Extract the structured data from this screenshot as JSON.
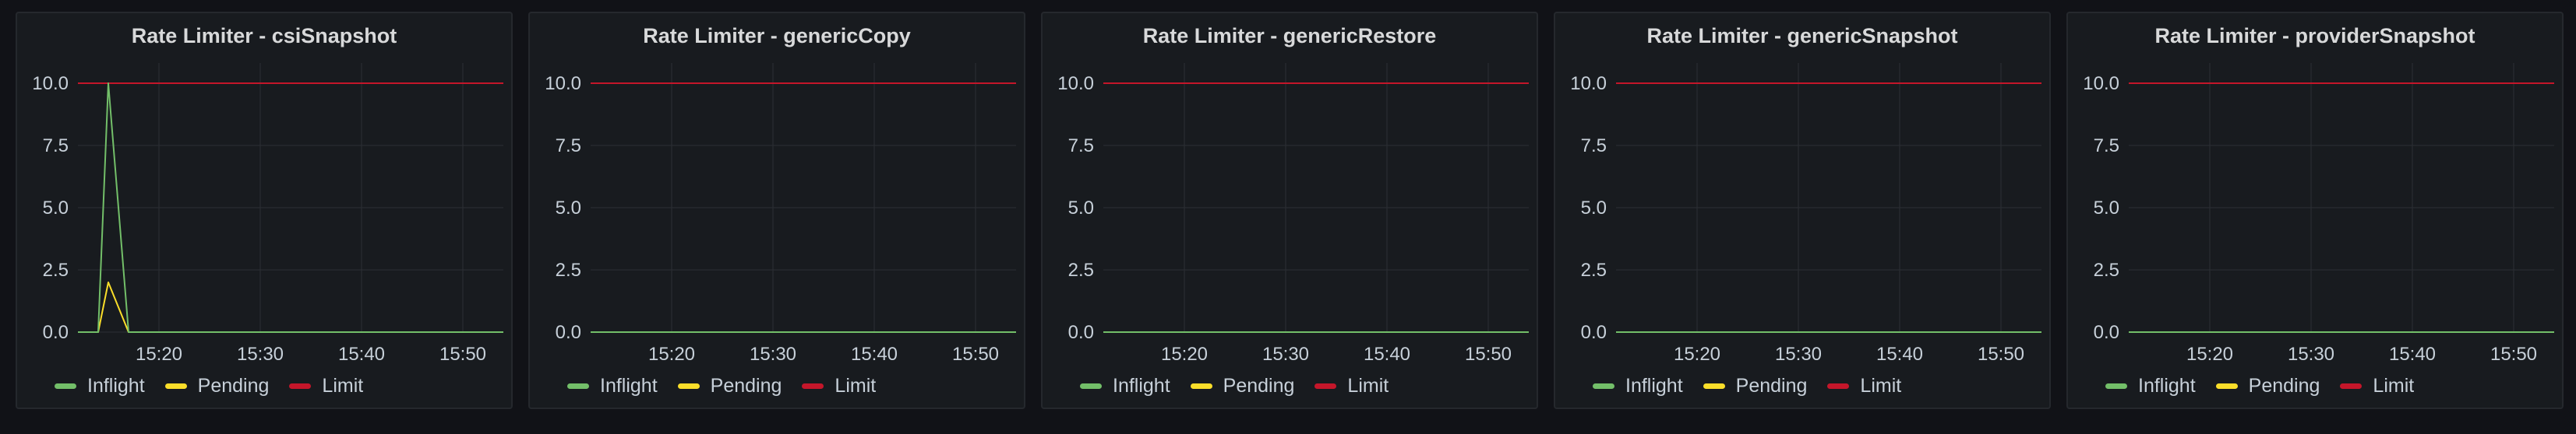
{
  "colors": {
    "inflight": "#73bf69",
    "pending": "#fade2a",
    "limit": "#c4162a"
  },
  "legend": [
    {
      "key": "inflight",
      "label": "Inflight"
    },
    {
      "key": "pending",
      "label": "Pending"
    },
    {
      "key": "limit",
      "label": "Limit"
    }
  ],
  "chart_data": [
    {
      "type": "line",
      "title": "Rate Limiter - csiSnapshot",
      "x_ticks": [
        "15:20",
        "15:30",
        "15:40",
        "15:50"
      ],
      "y_ticks": [
        "0.0",
        "2.5",
        "5.0",
        "7.5",
        "10.0"
      ],
      "ylim": [
        0,
        10
      ],
      "xlim": [
        "15:12",
        "15:54"
      ],
      "grid": true,
      "legend_position": "bottom-left",
      "series": [
        {
          "name": "Inflight",
          "key": "inflight",
          "x": [
            "15:12",
            "15:14",
            "15:15",
            "15:17",
            "15:54"
          ],
          "values": [
            0,
            0,
            10,
            0,
            0
          ]
        },
        {
          "name": "Pending",
          "key": "pending",
          "x": [
            "15:12",
            "15:14",
            "15:15",
            "15:17",
            "15:54"
          ],
          "values": [
            0,
            0,
            2,
            0,
            0
          ]
        },
        {
          "name": "Limit",
          "key": "limit",
          "x": [
            "15:12",
            "15:54"
          ],
          "values": [
            10,
            10
          ]
        }
      ]
    },
    {
      "type": "line",
      "title": "Rate Limiter - genericCopy",
      "x_ticks": [
        "15:20",
        "15:30",
        "15:40",
        "15:50"
      ],
      "y_ticks": [
        "0.0",
        "2.5",
        "5.0",
        "7.5",
        "10.0"
      ],
      "ylim": [
        0,
        10
      ],
      "xlim": [
        "15:12",
        "15:54"
      ],
      "grid": true,
      "legend_position": "bottom-left",
      "series": [
        {
          "name": "Inflight",
          "key": "inflight",
          "x": [
            "15:12",
            "15:54"
          ],
          "values": [
            0,
            0
          ]
        },
        {
          "name": "Pending",
          "key": "pending",
          "x": [
            "15:12",
            "15:54"
          ],
          "values": [
            0,
            0
          ]
        },
        {
          "name": "Limit",
          "key": "limit",
          "x": [
            "15:12",
            "15:54"
          ],
          "values": [
            10,
            10
          ]
        }
      ]
    },
    {
      "type": "line",
      "title": "Rate Limiter - genericRestore",
      "x_ticks": [
        "15:20",
        "15:30",
        "15:40",
        "15:50"
      ],
      "y_ticks": [
        "0.0",
        "2.5",
        "5.0",
        "7.5",
        "10.0"
      ],
      "ylim": [
        0,
        10
      ],
      "xlim": [
        "15:12",
        "15:54"
      ],
      "grid": true,
      "legend_position": "bottom-left",
      "series": [
        {
          "name": "Inflight",
          "key": "inflight",
          "x": [
            "15:12",
            "15:54"
          ],
          "values": [
            0,
            0
          ]
        },
        {
          "name": "Pending",
          "key": "pending",
          "x": [
            "15:12",
            "15:54"
          ],
          "values": [
            0,
            0
          ]
        },
        {
          "name": "Limit",
          "key": "limit",
          "x": [
            "15:12",
            "15:54"
          ],
          "values": [
            10,
            10
          ]
        }
      ]
    },
    {
      "type": "line",
      "title": "Rate Limiter - genericSnapshot",
      "x_ticks": [
        "15:20",
        "15:30",
        "15:40",
        "15:50"
      ],
      "y_ticks": [
        "0.0",
        "2.5",
        "5.0",
        "7.5",
        "10.0"
      ],
      "ylim": [
        0,
        10
      ],
      "xlim": [
        "15:12",
        "15:54"
      ],
      "grid": true,
      "legend_position": "bottom-left",
      "series": [
        {
          "name": "Inflight",
          "key": "inflight",
          "x": [
            "15:12",
            "15:54"
          ],
          "values": [
            0,
            0
          ]
        },
        {
          "name": "Pending",
          "key": "pending",
          "x": [
            "15:12",
            "15:54"
          ],
          "values": [
            0,
            0
          ]
        },
        {
          "name": "Limit",
          "key": "limit",
          "x": [
            "15:12",
            "15:54"
          ],
          "values": [
            10,
            10
          ]
        }
      ]
    },
    {
      "type": "line",
      "title": "Rate Limiter - providerSnapshot",
      "x_ticks": [
        "15:20",
        "15:30",
        "15:40",
        "15:50"
      ],
      "y_ticks": [
        "0.0",
        "2.5",
        "5.0",
        "7.5",
        "10.0"
      ],
      "ylim": [
        0,
        10
      ],
      "xlim": [
        "15:12",
        "15:54"
      ],
      "grid": true,
      "legend_position": "bottom-left",
      "series": [
        {
          "name": "Inflight",
          "key": "inflight",
          "x": [
            "15:12",
            "15:54"
          ],
          "values": [
            0,
            0
          ]
        },
        {
          "name": "Pending",
          "key": "pending",
          "x": [
            "15:12",
            "15:54"
          ],
          "values": [
            0,
            0
          ]
        },
        {
          "name": "Limit",
          "key": "limit",
          "x": [
            "15:12",
            "15:54"
          ],
          "values": [
            10,
            10
          ]
        }
      ]
    }
  ]
}
